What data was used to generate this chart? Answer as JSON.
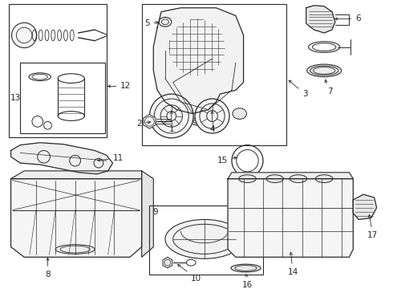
{
  "bg_color": "#ffffff",
  "line_color": "#2a2a2a",
  "fig_width": 4.9,
  "fig_height": 3.6,
  "dpi": 100,
  "font_size": 7.5
}
